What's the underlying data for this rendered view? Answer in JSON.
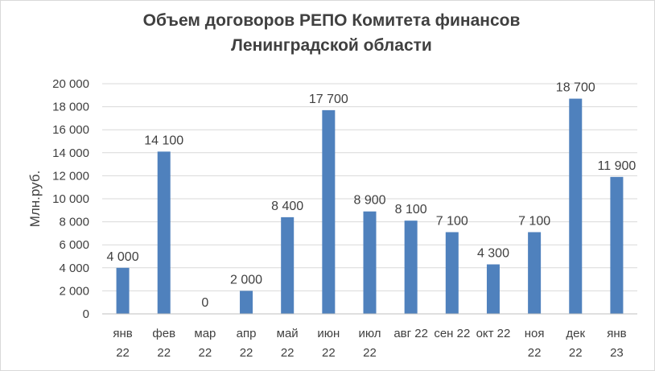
{
  "chart_data": {
    "type": "bar",
    "title_lines": [
      "Объем  договоров РЕПО Комитета финансов",
      "Ленинградской области"
    ],
    "xlabel": "",
    "ylabel": "Млн.руб.",
    "ylim": [
      0,
      20000
    ],
    "yticks": [
      0,
      2000,
      4000,
      6000,
      8000,
      10000,
      12000,
      14000,
      16000,
      18000,
      20000
    ],
    "ytick_labels": [
      "0",
      "2 000",
      "4 000",
      "6 000",
      "8 000",
      "10 000",
      "12 000",
      "14 000",
      "16 000",
      "18 000",
      "20 000"
    ],
    "grid": true,
    "bar_color": "#4f81bd",
    "categories": [
      [
        "янв",
        "22"
      ],
      [
        "фев",
        "22"
      ],
      [
        "мар",
        "22"
      ],
      [
        "апр",
        "22"
      ],
      [
        "май",
        "22"
      ],
      [
        "июн",
        "22"
      ],
      [
        "июл",
        "22"
      ],
      [
        "авг 22"
      ],
      [
        "сен 22"
      ],
      [
        "окт 22"
      ],
      [
        "ноя",
        "22"
      ],
      [
        "дек",
        "22"
      ],
      [
        "янв",
        "23"
      ]
    ],
    "values": [
      4000,
      14100,
      0,
      2000,
      8400,
      17700,
      8900,
      8100,
      7100,
      4300,
      7100,
      18700,
      11900
    ],
    "data_labels": [
      "4 000",
      "14 100",
      "0",
      "2 000",
      "8 400",
      "17 700",
      "8 900",
      "8 100",
      "7 100",
      "4 300",
      "7 100",
      "18 700",
      "11 900"
    ]
  }
}
